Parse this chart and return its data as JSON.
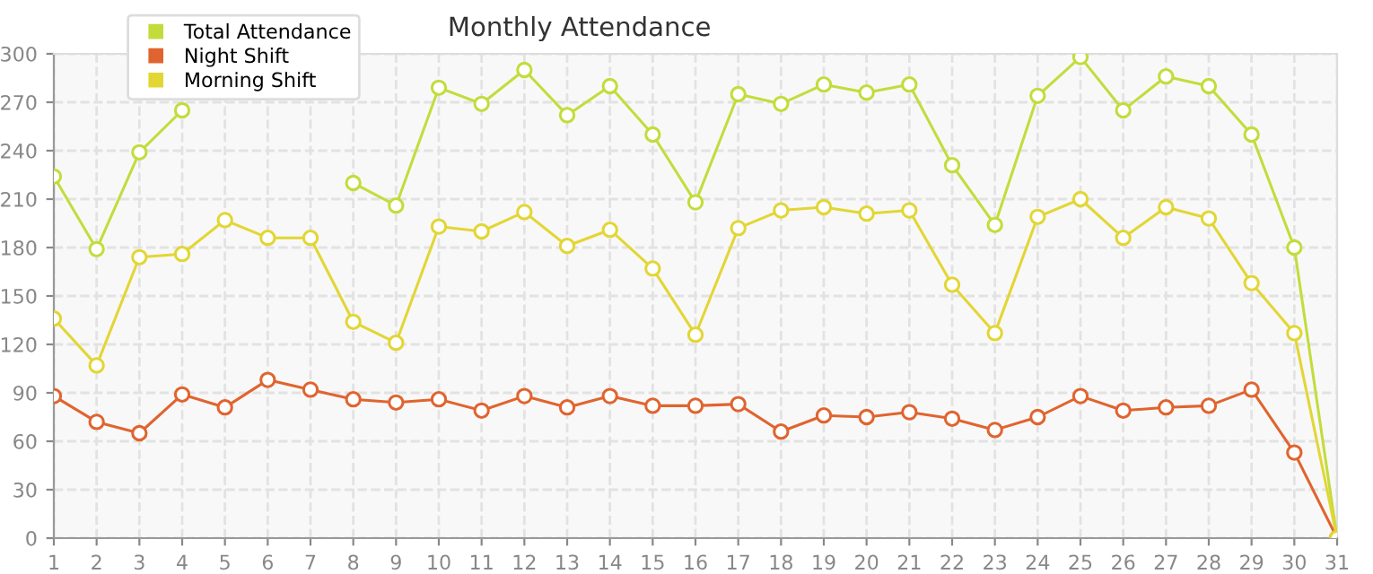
{
  "chart_data": {
    "type": "line",
    "title": "Monthly Attendance",
    "x": [
      1,
      2,
      3,
      4,
      5,
      6,
      7,
      8,
      9,
      10,
      11,
      12,
      13,
      14,
      15,
      16,
      17,
      18,
      19,
      20,
      21,
      22,
      23,
      24,
      25,
      26,
      27,
      28,
      29,
      30,
      31
    ],
    "series": [
      {
        "name": "Total Attendance",
        "color": "#c3dc3c",
        "values": [
          224,
          179,
          239,
          265,
          null,
          null,
          null,
          220,
          206,
          279,
          269,
          290,
          262,
          280,
          250,
          208,
          275,
          269,
          281,
          276,
          281,
          231,
          194,
          274,
          298,
          265,
          286,
          280,
          250,
          180,
          0
        ]
      },
      {
        "name": "Night Shift",
        "color": "#e0642f",
        "values": [
          88,
          72,
          65,
          89,
          81,
          98,
          92,
          86,
          84,
          86,
          79,
          88,
          81,
          88,
          82,
          82,
          83,
          66,
          76,
          75,
          78,
          74,
          67,
          75,
          88,
          79,
          81,
          82,
          92,
          53,
          0
        ]
      },
      {
        "name": "Morning Shift",
        "color": "#e2d635",
        "values": [
          136,
          107,
          174,
          176,
          197,
          186,
          186,
          134,
          121,
          193,
          190,
          202,
          181,
          191,
          167,
          126,
          192,
          203,
          205,
          201,
          203,
          157,
          127,
          199,
          210,
          186,
          205,
          198,
          158,
          127,
          0
        ]
      }
    ],
    "xlim": [
      1,
      31
    ],
    "xticks": [
      1,
      2,
      3,
      4,
      5,
      6,
      7,
      8,
      9,
      10,
      11,
      12,
      13,
      14,
      15,
      16,
      17,
      18,
      19,
      20,
      21,
      22,
      23,
      24,
      25,
      26,
      27,
      28,
      29,
      30,
      31
    ],
    "ylim": [
      0,
      300
    ],
    "yticks": [
      0,
      30,
      60,
      90,
      120,
      150,
      180,
      210,
      240,
      270,
      300
    ],
    "grid": true,
    "legend": "top left",
    "marker": "circle",
    "line_style": "solid"
  }
}
